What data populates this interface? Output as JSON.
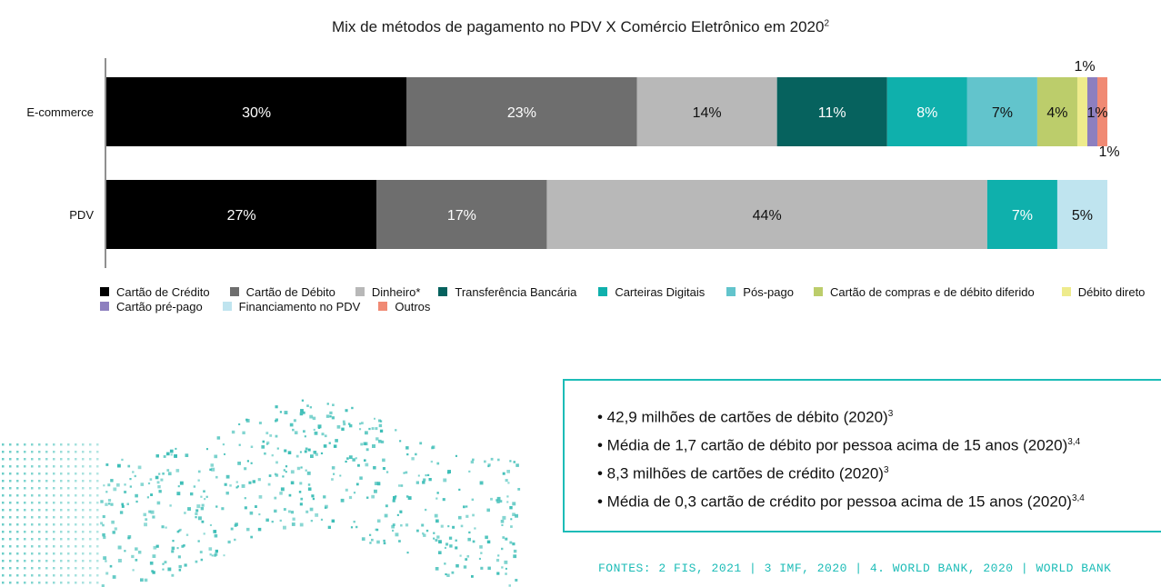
{
  "title": {
    "text": "Mix de métodos de pagamento no PDV X Comércio Eletrônico em 2020",
    "footnote": "2"
  },
  "chart_data": {
    "type": "bar",
    "orientation": "horizontal",
    "stacked": true,
    "categories": [
      "E-commerce",
      "PDV"
    ],
    "series": [
      {
        "name": "Cartão de Crédito",
        "color": "#000000",
        "label_color": "#ffffff",
        "values": [
          30,
          27
        ],
        "labels": [
          "30%",
          "27%"
        ]
      },
      {
        "name": "Cartão de Débito",
        "color": "#6e6e6e",
        "label_color": "#ffffff",
        "values": [
          23,
          17
        ],
        "labels": [
          "23%",
          "17%"
        ]
      },
      {
        "name": "Dinheiro*",
        "color": "#b8b8b8",
        "label_color": "#111111",
        "values": [
          14,
          44
        ],
        "labels": [
          "14%",
          "44%"
        ]
      },
      {
        "name": "Transferência Bancária",
        "color": "#06625e",
        "label_color": "#ffffff",
        "values": [
          11,
          0
        ],
        "labels": [
          "11%",
          ""
        ]
      },
      {
        "name": "Carteiras Digitais",
        "color": "#0fb0ac",
        "label_color": "#ffffff",
        "values": [
          8,
          7
        ],
        "labels": [
          "8%",
          "7%"
        ]
      },
      {
        "name": "Pós-pago",
        "color": "#62c4cc",
        "label_color": "#111111",
        "values": [
          7,
          0
        ],
        "labels": [
          "7%",
          ""
        ]
      },
      {
        "name": "Cartão de compras e de débito diferido",
        "color": "#bccd6b",
        "label_color": "#111111",
        "values": [
          4,
          0
        ],
        "labels": [
          "4%",
          ""
        ]
      },
      {
        "name": "Débito direto",
        "color": "#eeeb8c",
        "label_color": "#111111",
        "values": [
          1,
          0
        ],
        "labels": [
          "",
          ""
        ]
      },
      {
        "name": "Cartão pré-pago",
        "color": "#8d7fbf",
        "label_color": "#111111",
        "values": [
          1,
          0
        ],
        "labels": [
          "",
          ""
        ]
      },
      {
        "name": "Financiamento no PDV",
        "color": "#bfe4ef",
        "label_color": "#111111",
        "values": [
          0,
          5
        ],
        "labels": [
          "",
          "5%"
        ]
      },
      {
        "name": "Outros",
        "color": "#f08a74",
        "label_color": "#111111",
        "values": [
          1,
          0
        ],
        "labels": [
          "",
          ""
        ]
      }
    ],
    "extra_labels": {
      "above_top": "1%",
      "inside_end": "1%",
      "below_end": "1%"
    },
    "legend": "bottom",
    "xlim": [
      0,
      100
    ]
  },
  "info_box": {
    "items": [
      {
        "text": "• 42,9 milhões de cartões de débito (2020)",
        "sup": "3"
      },
      {
        "text": "• Média de 1,7 cartão de débito por pessoa acima de 15 anos (2020)",
        "sup": "3,4"
      },
      {
        "text": "• 8,3 milhões de cartões de crédito (2020)",
        "sup": "3"
      },
      {
        "text": "• Média de 0,3 cartão de crédito por pessoa acima de 15 anos (2020)",
        "sup": "3,4"
      }
    ]
  },
  "sources": "FONTES: 2 FIS, 2021 | 3 IMF, 2020 | 4. WORLD BANK, 2020 | WORLD BANK",
  "colors": {
    "accent": "#1cbcb7",
    "dots": "#3bbdb6"
  }
}
